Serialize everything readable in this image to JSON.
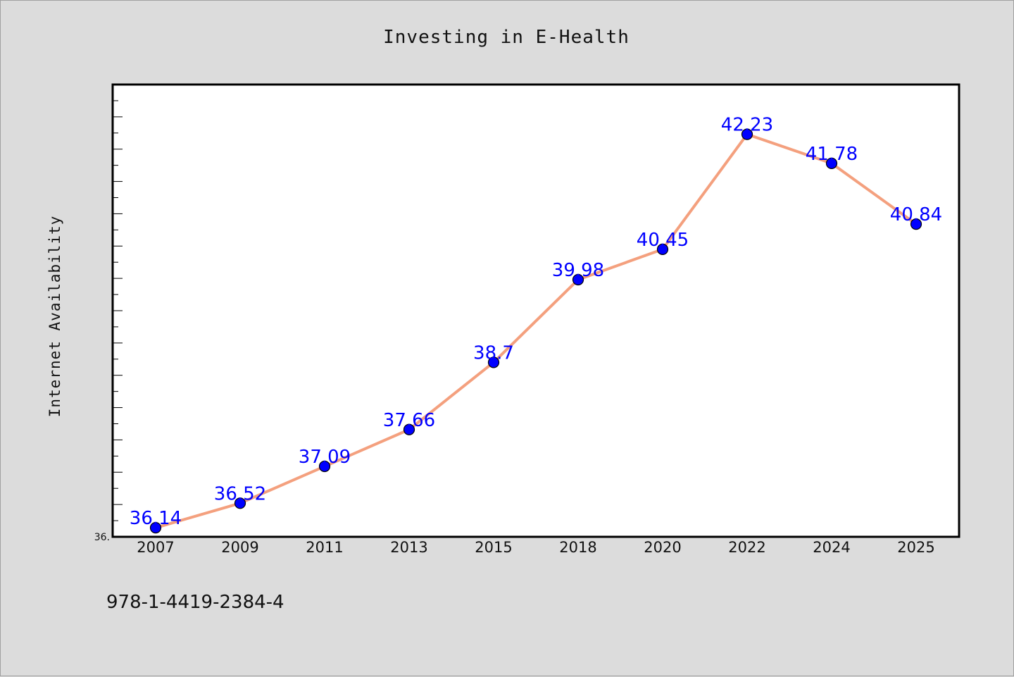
{
  "chart_data": {
    "type": "line",
    "title": "Investing in E-Health",
    "xlabel": "",
    "ylabel": "Internet Availability",
    "categories": [
      "2007",
      "2009",
      "2011",
      "2013",
      "2015",
      "2018",
      "2020",
      "2022",
      "2024",
      "2025"
    ],
    "values": [
      36.14,
      36.52,
      37.09,
      37.66,
      38.7,
      39.98,
      40.45,
      42.23,
      41.78,
      40.84
    ],
    "data_labels": [
      "36.14",
      "36.52",
      "37.09",
      "37.66",
      "38.7",
      "39.98",
      "40.45",
      "42.23",
      "41.78",
      "40.84"
    ],
    "ylim": [
      36.0,
      43.0
    ],
    "y_tick_labels": [
      "36."
    ],
    "grid": false,
    "legend": "none",
    "line_color": "#f4a07e",
    "marker_color": "#0000ff",
    "label_color": "#0000ff",
    "background_color": "#dcdcdc",
    "plot_background": "#ffffff"
  },
  "footnote": "978-1-4419-2384-4"
}
